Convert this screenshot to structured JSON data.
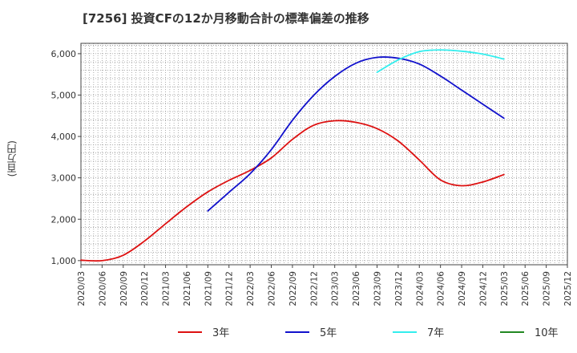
{
  "chart_data": {
    "type": "line",
    "title": "[7256]  投資CFの12か月移動合計の標準偏差の推移",
    "ylabel": "(百万円)",
    "xlabel": "",
    "ylim": [
      900,
      6250
    ],
    "yticks": [
      1000,
      2000,
      3000,
      4000,
      5000,
      6000
    ],
    "ytick_labels": [
      "1,000",
      "2,000",
      "3,000",
      "4,000",
      "5,000",
      "6,000"
    ],
    "categories": [
      "2020/03",
      "2020/06",
      "2020/09",
      "2020/12",
      "2021/03",
      "2021/06",
      "2021/09",
      "2021/12",
      "2022/03",
      "2022/06",
      "2022/09",
      "2022/12",
      "2023/03",
      "2023/06",
      "2023/09",
      "2023/12",
      "2024/03",
      "2024/06",
      "2024/09",
      "2024/12",
      "2025/03",
      "2025/06",
      "2025/09",
      "2025/12"
    ],
    "grid": true,
    "legend_position": "bottom",
    "series": [
      {
        "name": "3年",
        "color": "#dd1111",
        "values": [
          1010,
          1000,
          1130,
          1470,
          1890,
          2300,
          2660,
          2940,
          3180,
          3480,
          3930,
          4270,
          4380,
          4340,
          4190,
          3890,
          3430,
          2950,
          2810,
          2900,
          3080,
          null,
          null,
          null
        ]
      },
      {
        "name": "5年",
        "color": "#1111cc",
        "values": [
          null,
          null,
          null,
          null,
          null,
          null,
          2200,
          2650,
          3100,
          3680,
          4390,
          4990,
          5450,
          5770,
          5910,
          5890,
          5750,
          5460,
          5120,
          4780,
          4440,
          null,
          null,
          null
        ]
      },
      {
        "name": "7年",
        "color": "#33eeee",
        "values": [
          null,
          null,
          null,
          null,
          null,
          null,
          null,
          null,
          null,
          null,
          null,
          null,
          null,
          null,
          5550,
          5850,
          6050,
          6090,
          6060,
          5990,
          5870,
          null,
          null,
          null
        ]
      },
      {
        "name": "10年",
        "color": "#228822",
        "values": [
          null,
          null,
          null,
          null,
          null,
          null,
          null,
          null,
          null,
          null,
          null,
          null,
          null,
          null,
          null,
          null,
          null,
          null,
          null,
          null,
          null,
          null,
          null,
          null
        ]
      }
    ]
  }
}
